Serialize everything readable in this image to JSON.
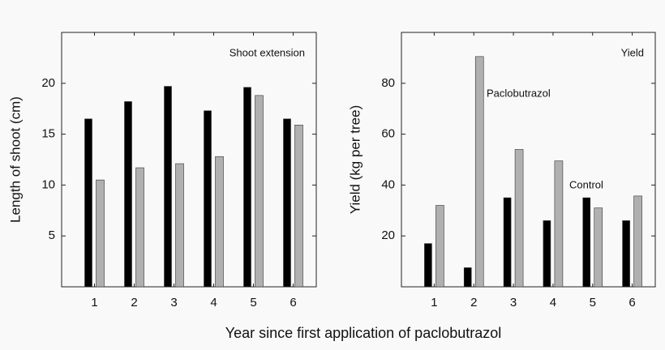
{
  "chart_data": [
    {
      "type": "bar",
      "title": "Shoot extension",
      "ylabel": "Length of shoot (cm)",
      "categories": [
        "1",
        "2",
        "3",
        "4",
        "5",
        "6"
      ],
      "series": [
        {
          "color": "#000000",
          "values": [
            16.5,
            18.2,
            19.7,
            17.3,
            19.6,
            16.5
          ]
        },
        {
          "color": "#b0b0b0",
          "values": [
            10.5,
            11.7,
            12.1,
            12.8,
            18.8,
            15.9
          ]
        }
      ],
      "ylim": [
        0,
        25
      ],
      "yticks": [
        5,
        10,
        15,
        20
      ]
    },
    {
      "type": "bar",
      "title": "Yield",
      "ylabel": "Yield (kg per tree)",
      "categories": [
        "1",
        "2",
        "3",
        "4",
        "5",
        "6"
      ],
      "series": [
        {
          "name": "Control",
          "color": "#000000",
          "values": [
            17,
            7.5,
            35,
            26,
            35,
            26
          ]
        },
        {
          "name": "Paclobutrazol",
          "color": "#b0b0b0",
          "values": [
            32,
            90.5,
            54,
            49.5,
            31,
            35.7
          ]
        }
      ],
      "ylim": [
        0,
        100
      ],
      "yticks": [
        20,
        40,
        60,
        80
      ]
    }
  ],
  "xlabel": "Year since first application of paclobutrazol"
}
